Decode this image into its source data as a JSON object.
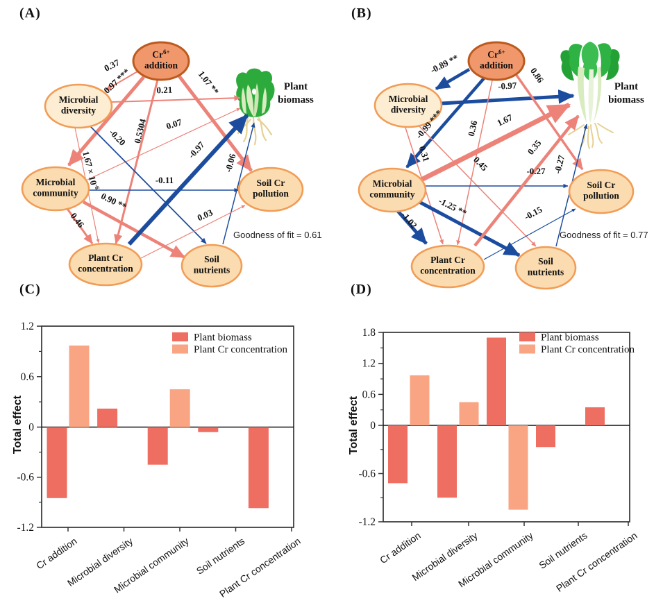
{
  "figure": {
    "panel_labels": {
      "a": "(A)",
      "b": "(B)",
      "c": "(C)",
      "d": "(D)"
    }
  },
  "colors": {
    "arrow_positive": "#ec8278",
    "arrow_negative": "#1c4c9e",
    "bar_plant_biomass": "#ee6e62",
    "bar_plant_cr": "#f9a583",
    "node_fill": "#fbdcb0",
    "node_fill_light": "#fdedd2",
    "node_stroke": "#f29c55",
    "cr_node_fill": "#f0976c",
    "cr_node_stroke": "#bc5a1e",
    "axis": "#333333",
    "leaf_green": "#2cab3c",
    "leaf_green_dark": "#1f9c30",
    "stalk_light": "#d8ecc0",
    "root_tan": "#e5d193"
  },
  "diagrams": [
    {
      "id": "A",
      "goodness_of_fit": "Goodness of fit = 0.61",
      "plant_caption": "Plant biomass",
      "nodes": [
        {
          "id": "crAdd",
          "lines": [
            "Cr{6+}",
            "addition"
          ],
          "style": "accent"
        },
        {
          "id": "micDiv",
          "lines": [
            "Microbial",
            "diversity"
          ],
          "style": "light"
        },
        {
          "id": "micCom",
          "lines": [
            "Microbial",
            "community"
          ],
          "style": "normal"
        },
        {
          "id": "plantCr",
          "lines": [
            "Plant Cr",
            "concentration"
          ],
          "style": "normal"
        },
        {
          "id": "soilNut",
          "lines": [
            "Soil",
            "nutrients"
          ],
          "style": "normal"
        },
        {
          "id": "soilCrPol",
          "lines": [
            "Soil Cr",
            "pollution"
          ],
          "style": "normal"
        }
      ],
      "edges": [
        {
          "from": "crAdd",
          "to": "micDiv",
          "label": "0.37",
          "color": "pos",
          "w": 2
        },
        {
          "from": "crAdd",
          "to": "micCom",
          "label": "0.97 ***",
          "color": "pos",
          "w": 5
        },
        {
          "from": "micDiv",
          "to": "plantBio",
          "label": "0.21",
          "color": "pos",
          "w": 2
        },
        {
          "from": "crAdd",
          "to": "soilCrPol",
          "label": "1.07 **",
          "color": "pos",
          "w": 5
        },
        {
          "from": "crAdd",
          "to": "plantCr",
          "label": "0.5304",
          "color": "pos",
          "w": 3
        },
        {
          "from": "micCom",
          "to": "plantBio",
          "label": "0.07",
          "color": "pos",
          "w": 1.2
        },
        {
          "from": "micDiv",
          "to": "soilNut",
          "label": "-0.20",
          "color": "neg",
          "w": 1.8
        },
        {
          "from": "micDiv",
          "to": "plantCr",
          "label": "1.67 × 10{-6}",
          "color": "pos",
          "w": 1.2
        },
        {
          "from": "micCom",
          "to": "soilCrPol",
          "label": "-0.11",
          "color": "neg",
          "w": 1.5
        },
        {
          "from": "micCom",
          "to": "soilNut",
          "label": "0.90 **",
          "color": "pos",
          "w": 4.5
        },
        {
          "from": "micCom",
          "to": "plantCr",
          "label": "0.46",
          "color": "pos",
          "w": 3
        },
        {
          "from": "plantCr",
          "to": "plantBio",
          "label": "-0.97",
          "color": "neg",
          "w": 6
        },
        {
          "from": "soilNut",
          "to": "plantBio",
          "label": "-0.06",
          "color": "neg",
          "w": 1.5
        },
        {
          "from": "plantCr",
          "to": "soilCrPol",
          "label": "0.03",
          "color": "pos",
          "w": 1.2
        }
      ]
    },
    {
      "id": "B",
      "goodness_of_fit": "Goodness of fit = 0.77",
      "plant_caption": "Plant biomass",
      "nodes": [
        {
          "id": "crAdd",
          "lines": [
            "Cr{6+}",
            "addition"
          ],
          "style": "accent"
        },
        {
          "id": "micDiv",
          "lines": [
            "Microbial",
            "diversity"
          ],
          "style": "light"
        },
        {
          "id": "micCom",
          "lines": [
            "Microbial",
            "community"
          ],
          "style": "normal"
        },
        {
          "id": "plantCr",
          "lines": [
            "Plant Cr",
            "concentration"
          ],
          "style": "normal"
        },
        {
          "id": "soilNut",
          "lines": [
            "Soil",
            "nutrients"
          ],
          "style": "normal"
        },
        {
          "id": "soilCrPol",
          "lines": [
            "Soil Cr",
            "pollution"
          ],
          "style": "normal"
        }
      ],
      "edges": [
        {
          "from": "crAdd",
          "to": "micDiv",
          "label": "-0.89 **",
          "color": "neg",
          "w": 4.5
        },
        {
          "from": "crAdd",
          "to": "micCom",
          "label": "-0.99 ***",
          "color": "neg",
          "w": 4.5
        },
        {
          "from": "micDiv",
          "to": "plantBio",
          "label": "-0.97",
          "color": "neg",
          "w": 5
        },
        {
          "from": "crAdd",
          "to": "soilCrPol",
          "label": "0.86",
          "color": "pos",
          "w": 3.5
        },
        {
          "from": "crAdd",
          "to": "plantCr",
          "label": "0.36",
          "color": "pos",
          "w": 1.5
        },
        {
          "from": "micCom",
          "to": "plantBio",
          "label": "1.67",
          "color": "pos",
          "w": 7
        },
        {
          "from": "micDiv",
          "to": "plantCr",
          "label": "0.31",
          "color": "pos",
          "w": 1.5
        },
        {
          "from": "micDiv",
          "to": "soilNut",
          "label": "0.45",
          "color": "pos",
          "w": 1.5
        },
        {
          "from": "micCom",
          "to": "soilCrPol",
          "label": "-0.27",
          "color": "neg",
          "w": 1.5
        },
        {
          "from": "micCom",
          "to": "soilNut",
          "label": "-1.25 **",
          "color": "neg",
          "w": 5
        },
        {
          "from": "micCom",
          "to": "plantCr",
          "label": "-1.02",
          "color": "neg",
          "w": 5
        },
        {
          "from": "plantCr",
          "to": "plantBio",
          "label": "0.35",
          "color": "pos",
          "w": 4.5
        },
        {
          "from": "soilNut",
          "to": "plantBio",
          "label": "-0.27",
          "color": "neg",
          "w": 1.5
        },
        {
          "from": "plantCr",
          "to": "soilCrPol",
          "label": "-0.15",
          "color": "neg",
          "w": 1.2
        }
      ]
    }
  ],
  "chart_data": [
    {
      "panel": "C",
      "type": "bar",
      "title": "",
      "xlabel": "",
      "ylabel": "Total effect",
      "ylim": [
        -1.2,
        1.2
      ],
      "yticks": [
        1.2,
        0.6,
        0,
        -0.6,
        -1.2
      ],
      "categories": [
        "Cr addition",
        "Microbial diversity",
        "Microbial community",
        "Soil nutrients",
        "Plant Cr concentration"
      ],
      "series": [
        {
          "name": "Plant biomass",
          "colorKey": "bar_plant_biomass",
          "values": [
            -0.85,
            0.22,
            -0.45,
            -0.06,
            -0.97
          ]
        },
        {
          "name": "Plant Cr concentration",
          "colorKey": "bar_plant_cr",
          "values": [
            0.97,
            null,
            0.45,
            null,
            null
          ]
        }
      ],
      "legend_position": "top-right-inside",
      "grid": false
    },
    {
      "panel": "D",
      "type": "bar",
      "title": "",
      "xlabel": "",
      "ylabel": "Total effect",
      "ylim": [
        -1.2,
        1.8
      ],
      "yticks": [
        1.8,
        1.2,
        0.6,
        0,
        -0.6,
        -1.2
      ],
      "categories": [
        "Cr addition",
        "Microbial diversity",
        "Microbial community",
        "Soil nutrients",
        "Plant Cr concentration"
      ],
      "series": [
        {
          "name": "Plant biomass",
          "colorKey": "bar_plant_biomass",
          "values": [
            -0.72,
            -0.9,
            1.7,
            -0.27,
            0.35
          ]
        },
        {
          "name": "Plant Cr concentration",
          "colorKey": "bar_plant_cr",
          "values": [
            0.97,
            0.45,
            -1.05,
            null,
            null
          ]
        }
      ],
      "legend_position": "top-right-inside",
      "grid": false
    }
  ]
}
